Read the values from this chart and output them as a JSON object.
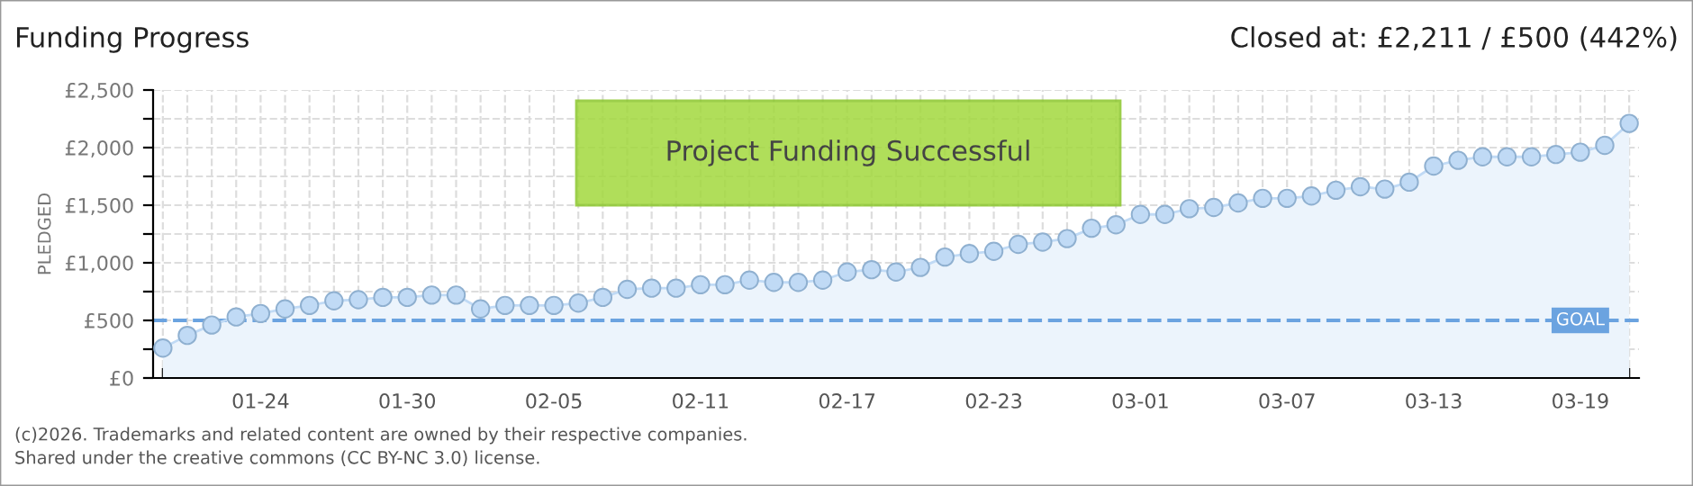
{
  "chart_data": {
    "type": "area",
    "title": "Funding Progress",
    "subtitle": "Closed at: £2,211 / £500 (442%)",
    "ylabel": "PLEDGED",
    "categories": [
      null,
      null,
      null,
      null,
      "01-24",
      null,
      null,
      null,
      null,
      null,
      "01-30",
      null,
      null,
      null,
      null,
      null,
      "02-05",
      null,
      null,
      null,
      null,
      null,
      "02-11",
      null,
      null,
      null,
      null,
      null,
      "02-17",
      null,
      null,
      null,
      null,
      null,
      "02-23",
      null,
      null,
      null,
      null,
      null,
      "03-01",
      null,
      null,
      null,
      null,
      null,
      "03-07",
      null,
      null,
      null,
      null,
      null,
      "03-13",
      null,
      null,
      null,
      null,
      null,
      "03-19",
      null,
      null
    ],
    "series": [
      {
        "color": "#c0daf5",
        "values": [
          260,
          370,
          460,
          530,
          560,
          600,
          630,
          670,
          680,
          700,
          700,
          720,
          720,
          600,
          630,
          630,
          630,
          650,
          700,
          770,
          780,
          780,
          810,
          810,
          850,
          830,
          830,
          850,
          920,
          940,
          920,
          960,
          1050,
          1080,
          1100,
          1160,
          1180,
          1210,
          1300,
          1330,
          1420,
          1420,
          1470,
          1480,
          1520,
          1560,
          1560,
          1580,
          1630,
          1660,
          1640,
          1700,
          1840,
          1890,
          1920,
          1920,
          1920,
          1940,
          1960,
          2020,
          2210
        ]
      }
    ],
    "ylim": [
      0,
      2500
    ],
    "yticks": [
      {
        "value": 0,
        "label": "£0"
      },
      {
        "value": 250,
        "label": null
      },
      {
        "value": 500,
        "label": "£500"
      },
      {
        "value": 750,
        "label": null
      },
      {
        "value": 1000,
        "label": "£1,000"
      },
      {
        "value": 1250,
        "label": null
      },
      {
        "value": 1500,
        "label": "£1,500"
      },
      {
        "value": 1750,
        "label": null
      },
      {
        "value": 2000,
        "label": "£2,000"
      },
      {
        "value": 2250,
        "label": null
      },
      {
        "value": 2500,
        "label": "£2,500"
      }
    ],
    "ref_lines": [
      {
        "axis": "y",
        "value": 500,
        "label": "GOAL",
        "color": "#6ba3e0",
        "line_style": "dashed"
      }
    ],
    "annotations": [
      "Project Funding Successful",
      "(c)2026. Trademarks and related content are owned by their respective companies.",
      "Shared under the creative commons (CC BY-NC 3.0) license."
    ],
    "grid": true,
    "marker": "circle"
  }
}
